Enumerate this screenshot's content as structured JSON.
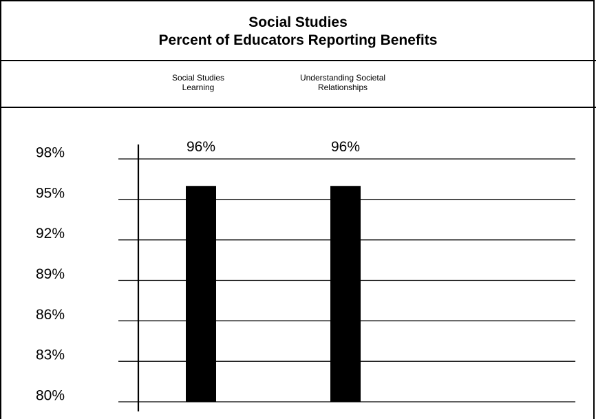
{
  "chart_data": {
    "type": "bar",
    "title": "Social Studies",
    "subtitle": "Percent of Educators Reporting Benefits",
    "categories": [
      "Social Studies\nLearning",
      "Understanding Societal\nRelationships"
    ],
    "category_lines": [
      [
        "Social Studies",
        "Learning"
      ],
      [
        "Understanding Societal",
        "Relationships"
      ]
    ],
    "values": [
      96,
      96
    ],
    "data_labels": [
      "96%",
      "96%"
    ],
    "ylim": [
      80,
      98
    ],
    "yticks": [
      98,
      95,
      92,
      89,
      86,
      83,
      80
    ],
    "ytick_labels": [
      "98%",
      "95%",
      "92%",
      "89%",
      "86%",
      "83%",
      "80%"
    ],
    "grid": true,
    "bar_color": "#000000"
  }
}
